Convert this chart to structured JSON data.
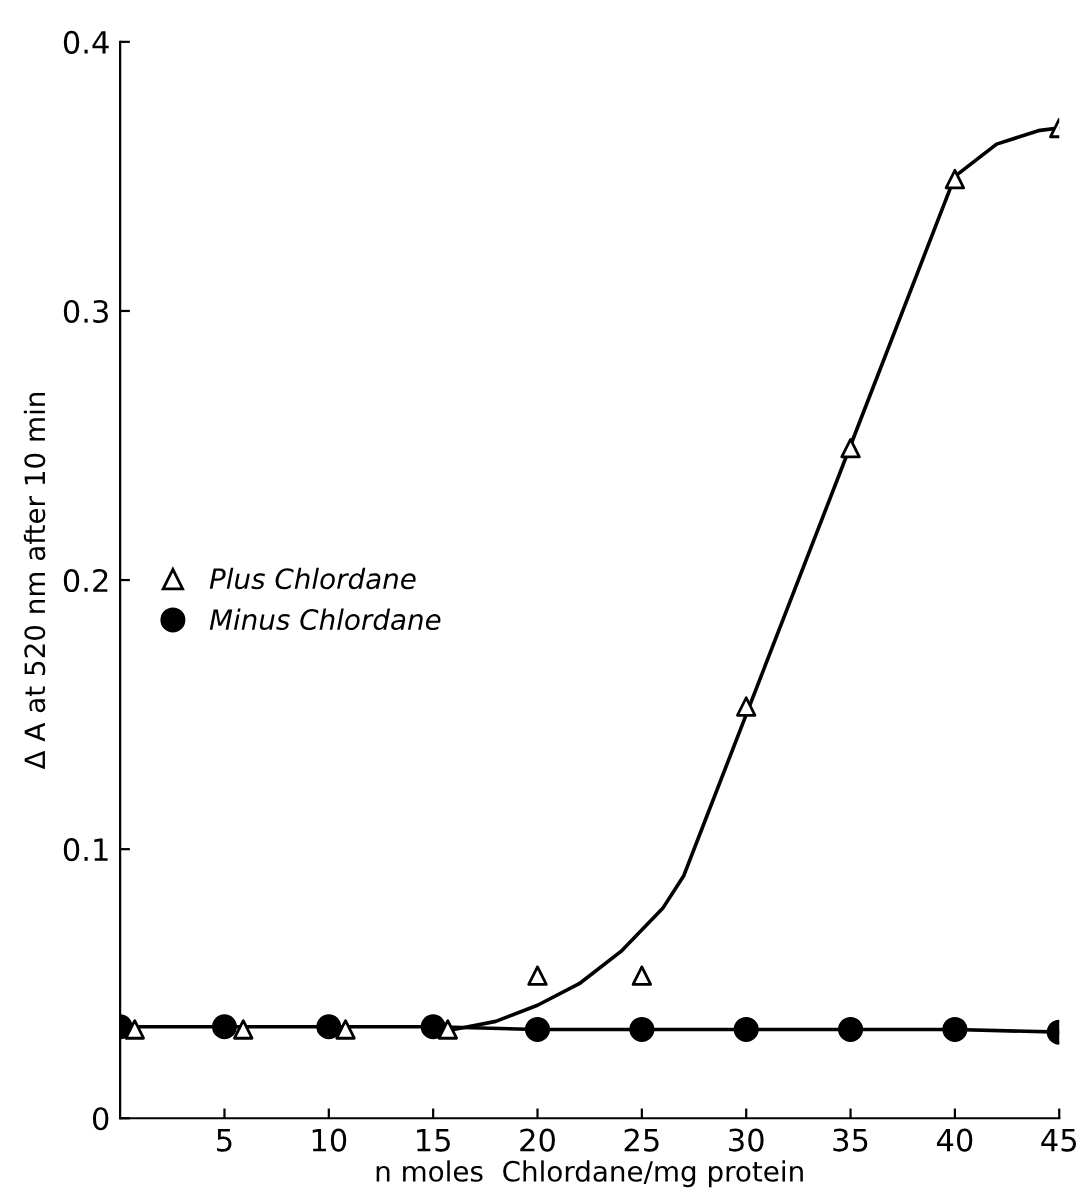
{
  "chart_data": {
    "type": "scatter",
    "xlabel": "n moles  Chlordane/mg protein",
    "ylabel": "Δ A at 520 nm after 10 min",
    "xlim": [
      0,
      45
    ],
    "xticks": [
      5,
      10,
      15,
      20,
      25,
      30,
      35,
      40,
      45
    ],
    "ylim": [
      0,
      0.4
    ],
    "yticks": [
      {
        "value": 0,
        "label": "0"
      },
      {
        "value": 0.1,
        "label": "0.1"
      },
      {
        "value": 0.2,
        "label": "0.2"
      },
      {
        "value": 0.3,
        "label": "0.3"
      },
      {
        "value": 0.4,
        "label": "0.4"
      }
    ],
    "legend": "center left",
    "grid": false,
    "series": [
      {
        "name": "Plus Chlordane",
        "marker": "triangle",
        "color": "#000000",
        "x": [
          0.7,
          5.9,
          10.8,
          15.7,
          20,
          25,
          30,
          35,
          40,
          45
        ],
        "values": [
          0.033,
          0.033,
          0.033,
          0.033,
          0.053,
          0.053,
          0.153,
          0.249,
          0.349,
          0.368
        ]
      },
      {
        "name": "Minus Chlordane",
        "type": "line",
        "marker": "circle",
        "color": "#000000",
        "x": [
          0,
          5,
          10,
          15,
          20,
          25,
          30,
          35,
          40,
          45
        ],
        "values": [
          0.034,
          0.034,
          0.034,
          0.034,
          0.033,
          0.033,
          0.033,
          0.033,
          0.033,
          0.032
        ]
      },
      {
        "type": "line",
        "marker": "none",
        "color": "#000000",
        "x": [
          16,
          18,
          20,
          22,
          24,
          26,
          27,
          28,
          30,
          35,
          40,
          42,
          44,
          45
        ],
        "values": [
          0.033,
          0.036,
          0.042,
          0.05,
          0.062,
          0.078,
          0.09,
          0.11,
          0.15,
          0.25,
          0.35,
          0.362,
          0.367,
          0.368
        ]
      }
    ]
  }
}
